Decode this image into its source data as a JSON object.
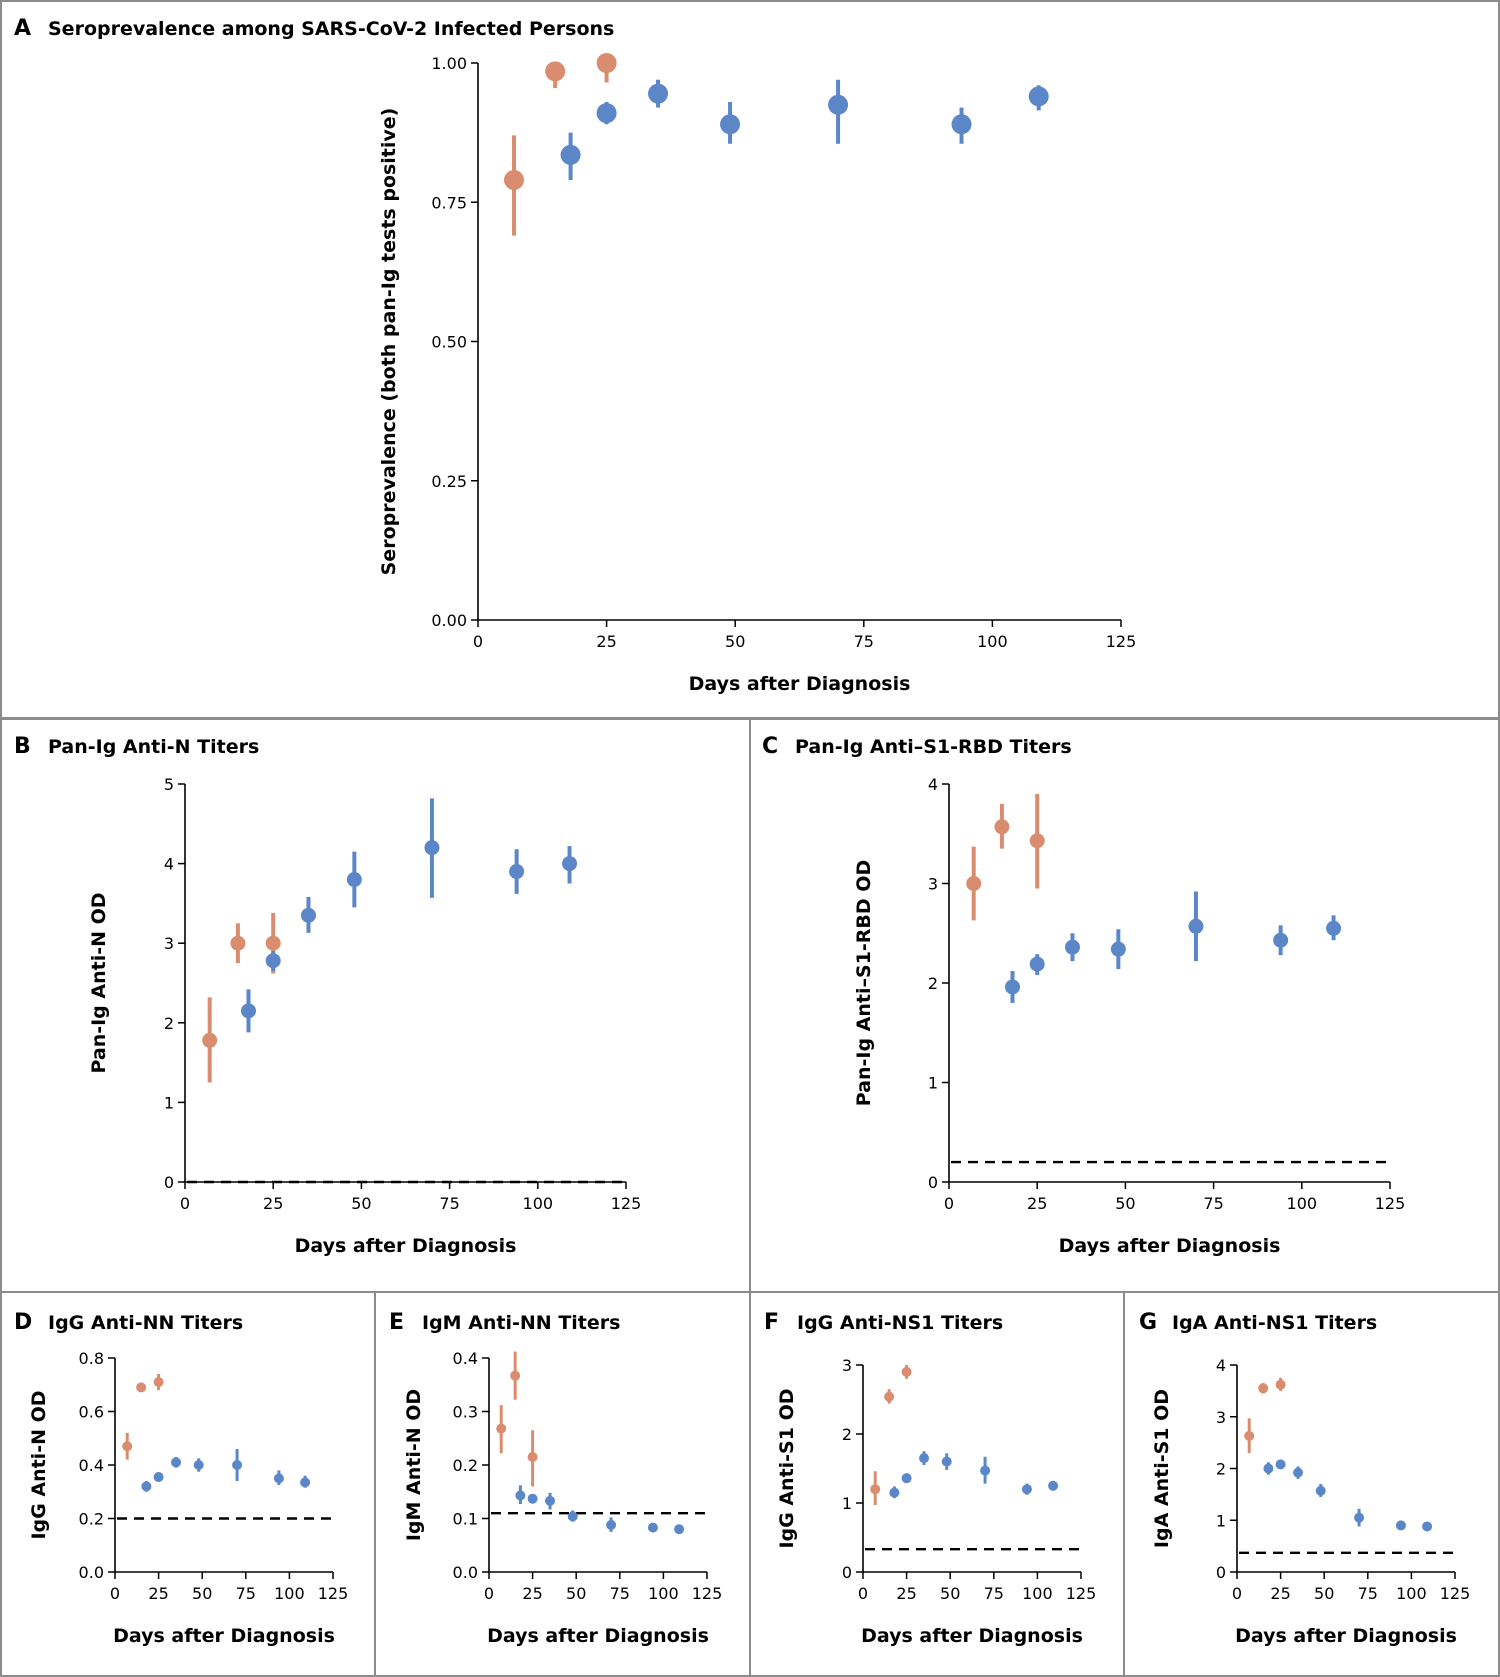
{
  "colors": {
    "early": "#d98c6e",
    "late": "#5b87c9",
    "border": "#8c8c8c"
  },
  "chart_data": [
    {
      "id": "A",
      "letter": "A",
      "title": "Seroprevalence among SARS-CoV-2 Infected Persons",
      "type": "scatter",
      "xlabel": "Days after Diagnosis",
      "ylabel": "Seroprevalence (both pan-Ig tests positive)",
      "xlim": [
        0,
        125
      ],
      "ylim": [
        0,
        1
      ],
      "xticks": [
        "0",
        "25",
        "50",
        "75",
        "100",
        "125"
      ],
      "yticks": [
        "0.00",
        "0.25",
        "0.50",
        "0.75",
        "1.00"
      ],
      "threshold": null,
      "series": [
        {
          "color": "early",
          "points": [
            {
              "x": 7,
              "y": 0.79,
              "lo": 0.69,
              "hi": 0.87
            },
            {
              "x": 15,
              "y": 0.985,
              "lo": 0.955,
              "hi": 1.0
            },
            {
              "x": 25,
              "y": 1.0,
              "lo": 0.965,
              "hi": 1.0
            }
          ]
        },
        {
          "color": "late",
          "points": [
            {
              "x": 18,
              "y": 0.835,
              "lo": 0.79,
              "hi": 0.875
            },
            {
              "x": 25,
              "y": 0.91,
              "lo": 0.89,
              "hi": 0.93
            },
            {
              "x": 35,
              "y": 0.945,
              "lo": 0.92,
              "hi": 0.97
            },
            {
              "x": 49,
              "y": 0.89,
              "lo": 0.855,
              "hi": 0.93
            },
            {
              "x": 70,
              "y": 0.925,
              "lo": 0.855,
              "hi": 0.97
            },
            {
              "x": 94,
              "y": 0.89,
              "lo": 0.855,
              "hi": 0.92
            },
            {
              "x": 109,
              "y": 0.94,
              "lo": 0.915,
              "hi": 0.96
            }
          ]
        }
      ]
    },
    {
      "id": "B",
      "letter": "B",
      "title": "Pan-Ig Anti-N Titers",
      "type": "scatter",
      "xlabel": "Days after Diagnosis",
      "ylabel": "Pan-Ig Anti-N OD",
      "xlim": [
        0,
        125
      ],
      "ylim": [
        0,
        5
      ],
      "xticks": [
        "0",
        "25",
        "50",
        "75",
        "100",
        "125"
      ],
      "yticks": [
        "0",
        "1",
        "2",
        "3",
        "4",
        "5"
      ],
      "threshold": 0.0,
      "series": [
        {
          "color": "early",
          "points": [
            {
              "x": 7,
              "y": 1.78,
              "lo": 1.25,
              "hi": 2.32
            },
            {
              "x": 15,
              "y": 3.0,
              "lo": 2.75,
              "hi": 3.25
            },
            {
              "x": 25,
              "y": 3.0,
              "lo": 2.62,
              "hi": 3.38
            }
          ]
        },
        {
          "color": "late",
          "points": [
            {
              "x": 18,
              "y": 2.15,
              "lo": 1.88,
              "hi": 2.42
            },
            {
              "x": 25,
              "y": 2.78,
              "lo": 2.65,
              "hi": 2.9
            },
            {
              "x": 35,
              "y": 3.35,
              "lo": 3.13,
              "hi": 3.58
            },
            {
              "x": 48,
              "y": 3.8,
              "lo": 3.45,
              "hi": 4.15
            },
            {
              "x": 70,
              "y": 4.2,
              "lo": 3.57,
              "hi": 4.82
            },
            {
              "x": 94,
              "y": 3.9,
              "lo": 3.62,
              "hi": 4.18
            },
            {
              "x": 109,
              "y": 4.0,
              "lo": 3.75,
              "hi": 4.22
            }
          ]
        }
      ]
    },
    {
      "id": "C",
      "letter": "C",
      "title": "Pan-Ig Anti–S1-RBD Titers",
      "type": "scatter",
      "xlabel": "Days after Diagnosis",
      "ylabel": "Pan-Ig Anti–S1-RBD OD",
      "xlim": [
        0,
        125
      ],
      "ylim": [
        0,
        4
      ],
      "xticks": [
        "0",
        "25",
        "50",
        "75",
        "100",
        "125"
      ],
      "yticks": [
        "0",
        "1",
        "2",
        "3",
        "4"
      ],
      "threshold": 0.2,
      "series": [
        {
          "color": "early",
          "points": [
            {
              "x": 7,
              "y": 3.0,
              "lo": 2.63,
              "hi": 3.37
            },
            {
              "x": 15,
              "y": 3.57,
              "lo": 3.35,
              "hi": 3.8
            },
            {
              "x": 25,
              "y": 3.43,
              "lo": 2.95,
              "hi": 3.9
            }
          ]
        },
        {
          "color": "late",
          "points": [
            {
              "x": 18,
              "y": 1.96,
              "lo": 1.8,
              "hi": 2.12
            },
            {
              "x": 25,
              "y": 2.19,
              "lo": 2.08,
              "hi": 2.29
            },
            {
              "x": 35,
              "y": 2.36,
              "lo": 2.22,
              "hi": 2.5
            },
            {
              "x": 48,
              "y": 2.34,
              "lo": 2.14,
              "hi": 2.54
            },
            {
              "x": 70,
              "y": 2.57,
              "lo": 2.22,
              "hi": 2.92
            },
            {
              "x": 94,
              "y": 2.43,
              "lo": 2.28,
              "hi": 2.58
            },
            {
              "x": 109,
              "y": 2.55,
              "lo": 2.43,
              "hi": 2.68
            }
          ]
        }
      ]
    },
    {
      "id": "D",
      "letter": "D",
      "title": "IgG Anti-NN Titers",
      "type": "scatter",
      "xlabel": "Days after Diagnosis",
      "ylabel": "IgG Anti-N OD",
      "xlim": [
        0,
        125
      ],
      "ylim": [
        0,
        0.8
      ],
      "xticks": [
        "0",
        "25",
        "50",
        "75",
        "100",
        "125"
      ],
      "yticks": [
        "0.0",
        "0.2",
        "0.4",
        "0.6",
        "0.8"
      ],
      "threshold": 0.2,
      "series": [
        {
          "color": "early",
          "points": [
            {
              "x": 7,
              "y": 0.47,
              "lo": 0.42,
              "hi": 0.52
            },
            {
              "x": 15,
              "y": 0.69,
              "lo": 0.675,
              "hi": 0.705
            },
            {
              "x": 25,
              "y": 0.71,
              "lo": 0.68,
              "hi": 0.74
            }
          ]
        },
        {
          "color": "late",
          "points": [
            {
              "x": 18,
              "y": 0.32,
              "lo": 0.3,
              "hi": 0.34
            },
            {
              "x": 25,
              "y": 0.355,
              "lo": 0.345,
              "hi": 0.365
            },
            {
              "x": 35,
              "y": 0.41,
              "lo": 0.39,
              "hi": 0.43
            },
            {
              "x": 48,
              "y": 0.4,
              "lo": 0.375,
              "hi": 0.425
            },
            {
              "x": 70,
              "y": 0.4,
              "lo": 0.34,
              "hi": 0.46
            },
            {
              "x": 94,
              "y": 0.35,
              "lo": 0.325,
              "hi": 0.38
            },
            {
              "x": 109,
              "y": 0.335,
              "lo": 0.315,
              "hi": 0.36
            }
          ]
        }
      ]
    },
    {
      "id": "E",
      "letter": "E",
      "title": "IgM Anti-NN Titers",
      "type": "scatter",
      "xlabel": "Days after Diagnosis",
      "ylabel": "IgM Anti-N OD",
      "xlim": [
        0,
        125
      ],
      "ylim": [
        0,
        0.4
      ],
      "xticks": [
        "0",
        "25",
        "50",
        "75",
        "100",
        "125"
      ],
      "yticks": [
        "0.0",
        "0.1",
        "0.2",
        "0.3",
        "0.4"
      ],
      "threshold": 0.11,
      "series": [
        {
          "color": "early",
          "points": [
            {
              "x": 7,
              "y": 0.268,
              "lo": 0.222,
              "hi": 0.312
            },
            {
              "x": 15,
              "y": 0.367,
              "lo": 0.322,
              "hi": 0.412
            },
            {
              "x": 25,
              "y": 0.215,
              "lo": 0.16,
              "hi": 0.265
            }
          ]
        },
        {
          "color": "late",
          "points": [
            {
              "x": 18,
              "y": 0.143,
              "lo": 0.127,
              "hi": 0.162
            },
            {
              "x": 25,
              "y": 0.137,
              "lo": 0.13,
              "hi": 0.145
            },
            {
              "x": 35,
              "y": 0.133,
              "lo": 0.117,
              "hi": 0.148
            },
            {
              "x": 48,
              "y": 0.104,
              "lo": 0.094,
              "hi": 0.115
            },
            {
              "x": 70,
              "y": 0.088,
              "lo": 0.075,
              "hi": 0.102
            },
            {
              "x": 94,
              "y": 0.083,
              "lo": 0.079,
              "hi": 0.088
            },
            {
              "x": 109,
              "y": 0.08,
              "lo": 0.076,
              "hi": 0.085
            }
          ]
        }
      ]
    },
    {
      "id": "F",
      "letter": "F",
      "title": "IgG Anti-NS1 Titers",
      "type": "scatter",
      "xlabel": "Days after Diagnosis",
      "ylabel": "IgG Anti-S1 OD",
      "xlim": [
        0,
        125
      ],
      "ylim": [
        0,
        3
      ],
      "xticks": [
        "0",
        "25",
        "50",
        "75",
        "100",
        "125"
      ],
      "yticks": [
        "0",
        "1",
        "2",
        "3"
      ],
      "threshold": 0.33,
      "series": [
        {
          "color": "early",
          "points": [
            {
              "x": 7,
              "y": 1.2,
              "lo": 0.97,
              "hi": 1.46
            },
            {
              "x": 15,
              "y": 2.54,
              "lo": 2.44,
              "hi": 2.65
            },
            {
              "x": 25,
              "y": 2.9,
              "lo": 2.8,
              "hi": 3.0
            }
          ]
        },
        {
          "color": "late",
          "points": [
            {
              "x": 18,
              "y": 1.15,
              "lo": 1.07,
              "hi": 1.24
            },
            {
              "x": 25,
              "y": 1.36,
              "lo": 1.32,
              "hi": 1.4
            },
            {
              "x": 35,
              "y": 1.65,
              "lo": 1.55,
              "hi": 1.75
            },
            {
              "x": 48,
              "y": 1.6,
              "lo": 1.48,
              "hi": 1.72
            },
            {
              "x": 70,
              "y": 1.47,
              "lo": 1.28,
              "hi": 1.67
            },
            {
              "x": 94,
              "y": 1.2,
              "lo": 1.12,
              "hi": 1.28
            },
            {
              "x": 109,
              "y": 1.25,
              "lo": 1.18,
              "hi": 1.32
            }
          ]
        }
      ]
    },
    {
      "id": "G",
      "letter": "G",
      "title": "IgA Anti-NS1 Titers",
      "type": "scatter",
      "xlabel": "Days after Diagnosis",
      "ylabel": "IgA Anti-S1 OD",
      "xlim": [
        0,
        125
      ],
      "ylim": [
        0,
        4
      ],
      "xticks": [
        "0",
        "25",
        "50",
        "75",
        "100",
        "125"
      ],
      "yticks": [
        "0",
        "1",
        "2",
        "3",
        "4"
      ],
      "threshold": 0.37,
      "series": [
        {
          "color": "early",
          "points": [
            {
              "x": 7,
              "y": 2.63,
              "lo": 2.3,
              "hi": 2.97
            },
            {
              "x": 15,
              "y": 3.55,
              "lo": 3.45,
              "hi": 3.65
            },
            {
              "x": 25,
              "y": 3.62,
              "lo": 3.5,
              "hi": 3.75
            }
          ]
        },
        {
          "color": "late",
          "points": [
            {
              "x": 18,
              "y": 2.0,
              "lo": 1.88,
              "hi": 2.12
            },
            {
              "x": 25,
              "y": 2.08,
              "lo": 2.0,
              "hi": 2.15
            },
            {
              "x": 35,
              "y": 1.92,
              "lo": 1.8,
              "hi": 2.04
            },
            {
              "x": 48,
              "y": 1.57,
              "lo": 1.45,
              "hi": 1.7
            },
            {
              "x": 70,
              "y": 1.05,
              "lo": 0.88,
              "hi": 1.22
            },
            {
              "x": 94,
              "y": 0.9,
              "lo": 0.85,
              "hi": 0.95
            },
            {
              "x": 109,
              "y": 0.88,
              "lo": 0.83,
              "hi": 0.93
            }
          ]
        }
      ]
    }
  ]
}
